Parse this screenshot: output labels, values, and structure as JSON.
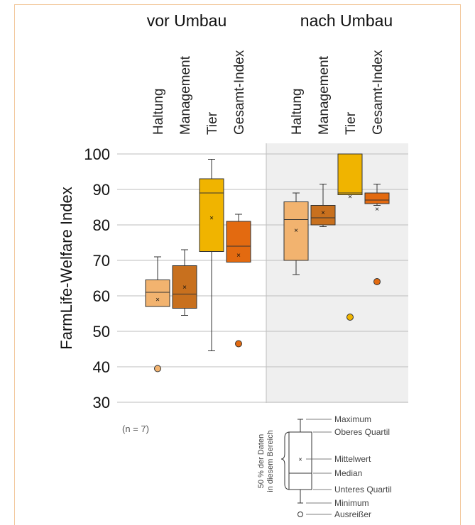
{
  "chart_data": {
    "type": "boxplot",
    "ylabel": "FarmLife-Welfare Index",
    "ylim": [
      30,
      100
    ],
    "yticks": [
      30,
      40,
      50,
      60,
      70,
      80,
      90,
      100
    ],
    "note": "(n = 7)",
    "categories": [
      "Haltung",
      "Management",
      "Tier",
      "Gesamt-Index"
    ],
    "colors": {
      "Haltung": "#f2b36f",
      "Management": "#c8701e",
      "Tier": "#f0b400",
      "Gesamt-Index": "#e36a10"
    },
    "groups": [
      {
        "name": "vor Umbau",
        "boxes": [
          {
            "category": "Haltung",
            "min": 57,
            "q1": 57,
            "median": 61,
            "q3": 64.5,
            "max": 71,
            "mean": 59,
            "outliers": [
              39.5
            ]
          },
          {
            "category": "Management",
            "min": 54.5,
            "q1": 56.5,
            "median": 60.5,
            "q3": 68.5,
            "max": 73,
            "mean": 62.5,
            "outliers": []
          },
          {
            "category": "Tier",
            "min": 44.5,
            "q1": 72.5,
            "median": 89,
            "q3": 93,
            "max": 98.5,
            "mean": 82,
            "outliers": []
          },
          {
            "category": "Gesamt-Index",
            "min": 69.5,
            "q1": 69.5,
            "median": 74,
            "q3": 81,
            "max": 83,
            "mean": 71.5,
            "outliers": [
              46.5
            ]
          }
        ]
      },
      {
        "name": "nach Umbau",
        "boxes": [
          {
            "category": "Haltung",
            "min": 66,
            "q1": 70,
            "median": 81.5,
            "q3": 86.5,
            "max": 89,
            "mean": 78.5,
            "outliers": []
          },
          {
            "category": "Management",
            "min": 79.5,
            "q1": 80,
            "median": 82,
            "q3": 85.5,
            "max": 91.5,
            "mean": 83.5,
            "outliers": []
          },
          {
            "category": "Tier",
            "min": 88.5,
            "q1": 88.5,
            "median": 89,
            "q3": 100,
            "max": 100,
            "mean": 88,
            "outliers": [
              54
            ]
          },
          {
            "category": "Gesamt-Index",
            "min": 85.5,
            "q1": 86,
            "median": 87,
            "q3": 89,
            "max": 91.5,
            "mean": 84.5,
            "outliers": [
              64
            ]
          }
        ]
      }
    ],
    "legend": {
      "side_label_line1": "50 % der Daten",
      "side_label_line2": "in diesem Bereich",
      "items": [
        "Maximum",
        "Oberes Quartil",
        "Mittelwert",
        "Median",
        "Unteres Quartil",
        "Minimum",
        "Ausreißer"
      ]
    }
  }
}
